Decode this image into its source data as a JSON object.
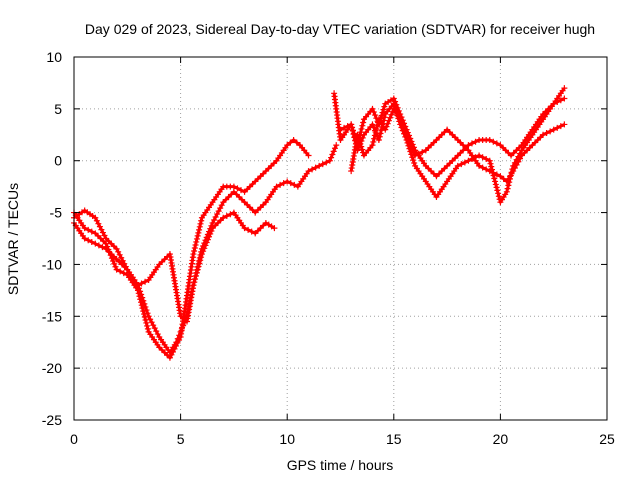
{
  "chart_data": {
    "type": "scatter",
    "title": "Day 029 of 2023, Sidereal Day-to-day VTEC variation (SDTVAR) for receiver hugh",
    "xlabel": "GPS time / hours",
    "ylabel": "SDTVAR / TECUs",
    "xlim": [
      0,
      25
    ],
    "ylim": [
      -25,
      10
    ],
    "xticks": [
      0,
      5,
      10,
      15,
      20,
      25
    ],
    "yticks": [
      -25,
      -20,
      -15,
      -10,
      -5,
      0,
      5,
      10
    ],
    "grid": true,
    "legend": "none",
    "marker": "plus",
    "color": "#ff0000",
    "series": [
      {
        "name": "series-1",
        "x": [
          0.0,
          0.5,
          1.0,
          1.5,
          2.0,
          2.5,
          3.0,
          3.5,
          4.0,
          4.5,
          5.0,
          5.3,
          5.6,
          6.0,
          6.5,
          7.0,
          7.5,
          8.0,
          8.5,
          9.0,
          9.4
        ],
        "y": [
          -5.5,
          -4.8,
          -5.5,
          -7.5,
          -8.5,
          -10.5,
          -12.0,
          -11.5,
          -10.0,
          -9.0,
          -15.0,
          -15.5,
          -12.0,
          -9.0,
          -6.5,
          -5.5,
          -5.0,
          -6.5,
          -7.0,
          -6.0,
          -6.5
        ]
      },
      {
        "name": "series-2",
        "x": [
          0.0,
          0.5,
          1.0,
          1.5,
          2.0,
          2.5,
          3.0,
          3.5,
          4.0,
          4.5,
          4.8,
          5.0,
          5.3,
          5.6,
          6.0,
          6.5,
          7.0,
          7.5,
          8.0,
          8.5,
          9.0,
          9.5,
          10.0,
          10.5,
          11.0,
          11.5,
          12.0,
          12.3
        ],
        "y": [
          -6.0,
          -7.5,
          -8.0,
          -8.5,
          -9.5,
          -10.5,
          -12.0,
          -15.0,
          -17.0,
          -18.5,
          -17.5,
          -16.5,
          -15.0,
          -12.0,
          -8.5,
          -6.0,
          -4.0,
          -3.0,
          -4.0,
          -5.0,
          -4.0,
          -2.5,
          -2.0,
          -2.5,
          -1.0,
          -0.5,
          0.0,
          1.5
        ]
      },
      {
        "name": "series-3",
        "x": [
          0.0,
          0.5,
          1.0,
          1.5,
          2.0,
          2.5,
          3.0,
          3.5,
          4.0,
          4.5,
          5.0,
          5.3,
          5.6,
          6.0,
          6.5,
          7.0,
          7.5,
          8.0,
          8.5,
          9.0,
          9.5,
          10.0,
          10.3,
          10.6,
          11.0
        ],
        "y": [
          -5.0,
          -6.5,
          -7.0,
          -8.0,
          -10.5,
          -11.0,
          -12.5,
          -16.5,
          -18.0,
          -19.0,
          -17.0,
          -13.0,
          -9.0,
          -5.5,
          -4.0,
          -2.5,
          -2.5,
          -3.0,
          -2.0,
          -1.0,
          0.0,
          1.5,
          2.0,
          1.5,
          0.5
        ]
      },
      {
        "name": "series-4",
        "x": [
          12.2,
          12.5,
          13.0,
          13.3,
          13.6,
          14.0,
          14.3,
          14.6,
          15.0,
          15.3,
          15.6,
          16.0,
          16.5,
          17.0,
          17.5,
          18.0,
          18.5,
          19.0,
          19.5,
          20.0,
          20.5,
          21.0,
          21.5,
          22.0,
          22.5,
          23.0
        ],
        "y": [
          6.5,
          2.0,
          3.5,
          1.5,
          4.0,
          5.0,
          3.5,
          5.5,
          6.0,
          4.5,
          3.0,
          1.0,
          -0.5,
          -1.5,
          -0.5,
          0.5,
          1.5,
          2.0,
          2.0,
          1.5,
          0.5,
          1.5,
          3.0,
          4.5,
          5.5,
          7.0
        ]
      },
      {
        "name": "series-5",
        "x": [
          12.5,
          13.0,
          13.3,
          13.6,
          14.0,
          14.3,
          14.6,
          15.0,
          15.3,
          15.6,
          16.0,
          16.5,
          17.0,
          17.5,
          18.0,
          18.5,
          19.0,
          19.5,
          20.0,
          20.3,
          20.6,
          21.0,
          21.5,
          22.0,
          22.5,
          23.0
        ],
        "y": [
          3.0,
          3.5,
          1.0,
          2.5,
          3.5,
          2.0,
          4.5,
          5.5,
          3.5,
          2.0,
          -0.5,
          -2.0,
          -3.5,
          -2.0,
          -0.5,
          0.0,
          0.5,
          0.0,
          -4.0,
          -3.0,
          -0.5,
          1.0,
          2.5,
          4.0,
          5.5,
          6.0
        ]
      },
      {
        "name": "series-6",
        "x": [
          13.0,
          13.3,
          13.6,
          14.0,
          14.3,
          14.6,
          15.0,
          15.3,
          15.6,
          16.0,
          16.5,
          17.0,
          17.5,
          18.0,
          18.5,
          19.0,
          19.5,
          20.0,
          20.3,
          20.6,
          21.0,
          21.5,
          22.0,
          22.5,
          23.0
        ],
        "y": [
          -1.0,
          2.5,
          0.5,
          1.5,
          4.0,
          3.0,
          5.0,
          4.0,
          2.5,
          0.5,
          1.0,
          2.0,
          3.0,
          2.0,
          1.0,
          -0.5,
          -1.0,
          -1.5,
          -2.0,
          -1.0,
          0.5,
          1.5,
          2.5,
          3.0,
          3.5
        ]
      }
    ]
  }
}
